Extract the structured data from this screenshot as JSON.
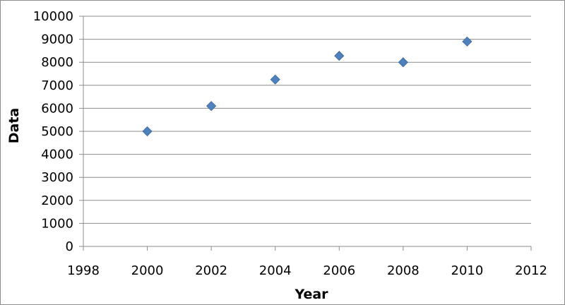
{
  "chart_data": {
    "type": "scatter",
    "xlabel": "Year",
    "ylabel": "Data",
    "xlim": [
      1998,
      2012
    ],
    "ylim": [
      0,
      10000
    ],
    "x_ticks": [
      1998,
      2000,
      2002,
      2004,
      2006,
      2008,
      2010,
      2012
    ],
    "y_ticks": [
      0,
      1000,
      2000,
      3000,
      4000,
      5000,
      6000,
      7000,
      8000,
      9000,
      10000
    ],
    "grid": "horizontal",
    "legend": "none",
    "marker": "diamond",
    "marker_color": "#4f81bd",
    "series": [
      {
        "points": [
          {
            "x": 2000,
            "y": 5000
          },
          {
            "x": 2002,
            "y": 6100
          },
          {
            "x": 2004,
            "y": 7250
          },
          {
            "x": 2006,
            "y": 8280
          },
          {
            "x": 2008,
            "y": 8000
          },
          {
            "x": 2010,
            "y": 8900
          }
        ]
      }
    ]
  }
}
